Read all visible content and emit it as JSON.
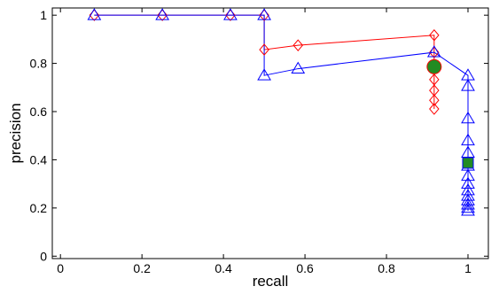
{
  "chart_data": {
    "type": "line",
    "title": "",
    "xlabel": "recall",
    "ylabel": "precision",
    "xlim": [
      -0.02,
      1.05
    ],
    "ylim": [
      -0.01,
      1.03
    ],
    "xticks": [
      0,
      0.2,
      0.4,
      0.6,
      0.8,
      1
    ],
    "xtick_labels": [
      "0",
      "0.2",
      "0.4",
      "0.6",
      "0.8",
      "1"
    ],
    "yticks": [
      0,
      0.2,
      0.4,
      0.6,
      0.8,
      1
    ],
    "ytick_labels": [
      "0",
      "0.2",
      "0.4",
      "0.6",
      "0.8",
      "1"
    ],
    "grid": false,
    "series": [
      {
        "color": "#ff0000",
        "marker": "diamond",
        "points": [
          [
            0.083,
            1.0
          ],
          [
            0.25,
            1.0
          ],
          [
            0.417,
            1.0
          ],
          [
            0.5,
            1.0
          ],
          [
            0.5,
            0.857
          ],
          [
            0.583,
            0.875
          ],
          [
            0.917,
            0.917
          ],
          [
            0.917,
            0.846
          ],
          [
            0.917,
            0.786
          ],
          [
            0.917,
            0.733
          ],
          [
            0.917,
            0.688
          ],
          [
            0.917,
            0.647
          ],
          [
            0.917,
            0.611
          ]
        ]
      },
      {
        "color": "#0000ff",
        "marker": "triangle",
        "points": [
          [
            0.083,
            1.0
          ],
          [
            0.25,
            1.0
          ],
          [
            0.417,
            1.0
          ],
          [
            0.5,
            1.0
          ],
          [
            0.5,
            0.75
          ],
          [
            0.583,
            0.778
          ],
          [
            0.917,
            0.846
          ],
          [
            1.0,
            0.75
          ],
          [
            1.0,
            0.706
          ],
          [
            1.0,
            0.571
          ],
          [
            1.0,
            0.48
          ],
          [
            1.0,
            0.429
          ],
          [
            1.0,
            0.375
          ],
          [
            1.0,
            0.333
          ],
          [
            1.0,
            0.3
          ],
          [
            1.0,
            0.273
          ],
          [
            1.0,
            0.25
          ],
          [
            1.0,
            0.231
          ],
          [
            1.0,
            0.214
          ],
          [
            1.0,
            0.2
          ],
          [
            1.0,
            0.188
          ]
        ]
      }
    ],
    "highlights": [
      {
        "shape": "circle",
        "x": 0.917,
        "y": 0.786,
        "fill": "#228b22",
        "stroke": "#ff0000"
      },
      {
        "shape": "square",
        "x": 1.0,
        "y": 0.387,
        "fill": "#228b22",
        "stroke": "#0000ff"
      }
    ]
  }
}
